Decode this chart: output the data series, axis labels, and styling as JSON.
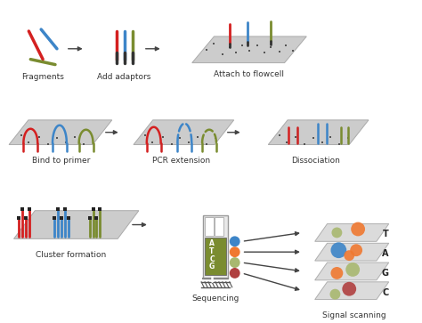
{
  "background": "#ffffff",
  "label_fontsize": 6.5,
  "colors": {
    "red": "#d42020",
    "blue": "#3d85c8",
    "green": "#7a8c30",
    "orange": "#f07830",
    "dark_red": "#b04040",
    "light_green": "#a8b870",
    "gray_panel": "#cccccc",
    "dark": "#222222",
    "panel_edge": "#aaaaaa"
  },
  "labels": {
    "fragments": "Fragments",
    "add_adaptors": "Add adaptors",
    "attach_flowcell": "Attach to flowcell",
    "bind_primer": "Bind to primer",
    "pcr_extension": "PCR extension",
    "dissociation": "Dissociation",
    "cluster_formation": "Cluster formation",
    "sequencing": "Sequencing",
    "signal_scanning": "Signal scanning"
  }
}
